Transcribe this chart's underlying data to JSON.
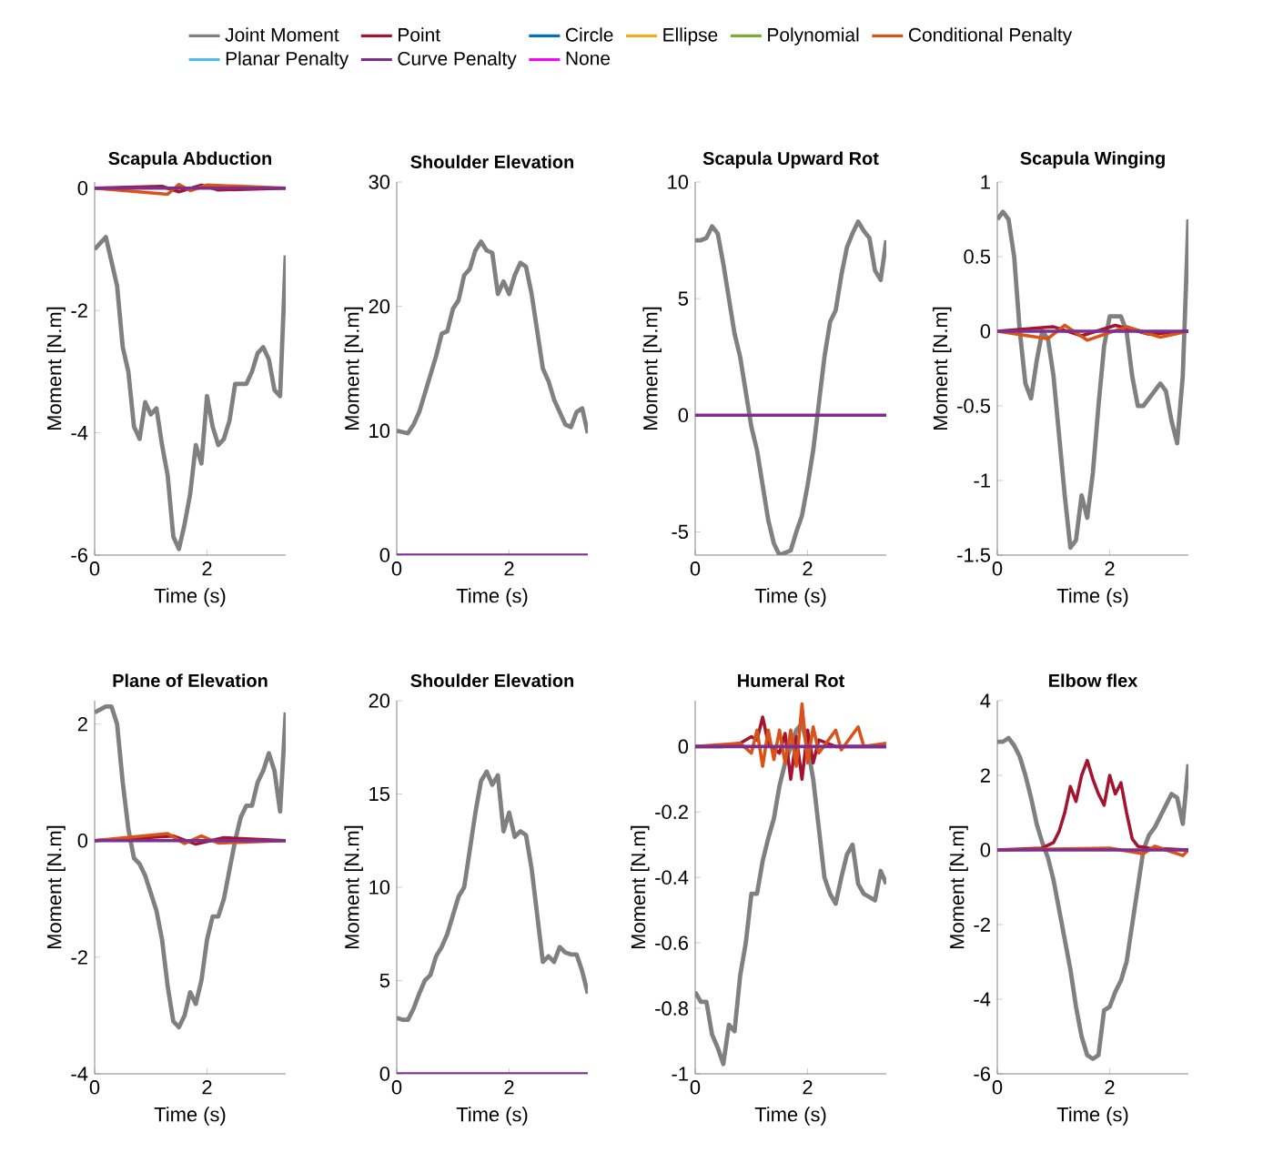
{
  "chart_data": [
    {
      "type": "line",
      "title": "Scapula Abduction",
      "xlabel": "Time (s)",
      "ylabel": "Moment [N.m]",
      "xlim": [
        0,
        3.4
      ],
      "xticks": [
        0,
        2
      ],
      "ylim": [
        -6,
        0.1
      ],
      "yticks": [
        -6,
        -4,
        -2,
        0
      ],
      "legend": "top",
      "x": [
        0,
        0.1,
        0.2,
        0.3,
        0.4,
        0.5,
        0.6,
        0.7,
        0.8,
        0.9,
        1.0,
        1.1,
        1.2,
        1.3,
        1.4,
        1.5,
        1.6,
        1.7,
        1.8,
        1.9,
        2.0,
        2.1,
        2.2,
        2.3,
        2.4,
        2.5,
        2.6,
        2.7,
        2.8,
        2.9,
        3.0,
        3.1,
        3.2,
        3.3,
        3.4
      ],
      "series": [
        {
          "name": "Joint Moment",
          "color": "#808080",
          "values": [
            -1.0,
            -0.9,
            -0.8,
            -1.2,
            -1.6,
            -2.6,
            -3.0,
            -3.9,
            -4.1,
            -3.5,
            -3.7,
            -3.6,
            -4.2,
            -4.7,
            -5.7,
            -5.9,
            -5.5,
            -5.0,
            -4.2,
            -4.5,
            -3.4,
            -3.9,
            -4.2,
            -4.1,
            -3.8,
            -3.2,
            -3.2,
            -3.2,
            -3.0,
            -2.7,
            -2.6,
            -2.8,
            -3.3,
            -3.4,
            -1.1
          ]
        },
        {
          "name": "Point",
          "color": "#a2142f",
          "x": [
            0,
            1.2,
            1.5,
            1.9,
            2.2,
            3.4
          ],
          "values": [
            0,
            0.03,
            -0.06,
            0.05,
            -0.03,
            0
          ]
        },
        {
          "name": "Circle",
          "color": "#0072bd",
          "values": [
            null,
            null,
            null,
            null,
            null,
            null,
            null,
            null,
            null,
            null,
            null,
            null,
            null,
            null,
            null,
            null,
            null,
            null,
            null,
            null,
            null,
            null,
            null,
            null,
            null,
            null,
            null,
            null,
            null,
            null,
            null,
            null,
            null,
            null,
            null
          ]
        },
        {
          "name": "Ellipse",
          "color": "#edb120",
          "values": [
            null,
            null,
            null,
            null,
            null,
            null,
            null,
            null,
            null,
            null,
            null,
            null,
            null,
            null,
            null,
            null,
            null,
            null,
            null,
            null,
            null,
            null,
            null,
            null,
            null,
            null,
            null,
            null,
            null,
            null,
            null,
            null,
            null,
            null,
            null
          ]
        },
        {
          "name": "Polynomial",
          "color": "#77ac30",
          "values": [
            null,
            null,
            null,
            null,
            null,
            null,
            null,
            null,
            null,
            null,
            null,
            null,
            null,
            null,
            null,
            null,
            null,
            null,
            null,
            null,
            null,
            null,
            null,
            null,
            null,
            null,
            null,
            null,
            null,
            null,
            null,
            null,
            null,
            null,
            null
          ]
        },
        {
          "name": "Conditional Penalty",
          "color": "#d95319",
          "x": [
            0,
            1.3,
            1.5,
            1.7,
            2.0,
            3.4
          ],
          "values": [
            0,
            -0.1,
            0.06,
            -0.04,
            0.05,
            0
          ]
        },
        {
          "name": "Planar Penalty",
          "color": "#4dbeee",
          "values": [
            null,
            null,
            null,
            null,
            null,
            null,
            null,
            null,
            null,
            null,
            null,
            null,
            null,
            null,
            null,
            null,
            null,
            null,
            null,
            null,
            null,
            null,
            null,
            null,
            null,
            null,
            null,
            null,
            null,
            null,
            null,
            null,
            null,
            null,
            null
          ]
        },
        {
          "name": "Curve Penalty",
          "color": "#7e2f8e",
          "x": [
            0,
            3.4
          ],
          "values": [
            0,
            0
          ]
        },
        {
          "name": "None",
          "color": "#ff00ff",
          "values": [
            null,
            null,
            null,
            null,
            null,
            null,
            null,
            null,
            null,
            null,
            null,
            null,
            null,
            null,
            null,
            null,
            null,
            null,
            null,
            null,
            null,
            null,
            null,
            null,
            null,
            null,
            null,
            null,
            null,
            null,
            null,
            null,
            null,
            null,
            null
          ]
        }
      ]
    },
    {
      "type": "line",
      "title": "Shoulder Elevation",
      "xlabel": "Time (s)",
      "ylabel": "Moment [N.m]",
      "xlim": [
        0,
        3.4
      ],
      "xticks": [
        0,
        2
      ],
      "ylim": [
        0,
        30
      ],
      "yticks": [
        0,
        10,
        20,
        30
      ],
      "x": [
        0,
        0.1,
        0.2,
        0.3,
        0.4,
        0.5,
        0.6,
        0.7,
        0.8,
        0.9,
        1.0,
        1.1,
        1.2,
        1.3,
        1.4,
        1.5,
        1.6,
        1.7,
        1.8,
        1.9,
        2.0,
        2.1,
        2.2,
        2.3,
        2.4,
        2.5,
        2.6,
        2.7,
        2.8,
        2.9,
        3.0,
        3.1,
        3.2,
        3.3,
        3.4
      ],
      "series": [
        {
          "color": "#808080",
          "values": [
            10.0,
            9.9,
            9.8,
            10.5,
            11.5,
            13,
            14.5,
            16,
            17.8,
            18,
            19.8,
            20.5,
            22.5,
            23,
            24.5,
            25.2,
            24.5,
            24.3,
            21,
            22,
            21,
            22.5,
            23.5,
            23.2,
            21,
            18,
            15,
            14,
            12.5,
            11.5,
            10.5,
            10.3,
            11.5,
            11.8,
            9.8
          ]
        },
        {
          "color": "#7e2f8e",
          "x": [
            0,
            3.4
          ],
          "values": [
            0,
            0
          ]
        }
      ]
    },
    {
      "type": "line",
      "title": "Scapula Upward Rot",
      "xlabel": "Time (s)",
      "ylabel": "Moment [N.m]",
      "xlim": [
        0,
        3.4
      ],
      "xticks": [
        0,
        2
      ],
      "ylim": [
        -6,
        10
      ],
      "yticks": [
        -5,
        0,
        5,
        10
      ],
      "x": [
        0,
        0.1,
        0.2,
        0.3,
        0.4,
        0.5,
        0.6,
        0.7,
        0.8,
        0.9,
        1.0,
        1.1,
        1.2,
        1.3,
        1.4,
        1.5,
        1.6,
        1.7,
        1.8,
        1.9,
        2.0,
        2.1,
        2.2,
        2.3,
        2.4,
        2.5,
        2.6,
        2.7,
        2.8,
        2.9,
        3.0,
        3.1,
        3.2,
        3.3,
        3.4
      ],
      "series": [
        {
          "color": "#808080",
          "values": [
            7.5,
            7.5,
            7.6,
            8.1,
            7.8,
            6.5,
            5.0,
            3.5,
            2.5,
            1.0,
            -0.5,
            -1.5,
            -3,
            -4.5,
            -5.5,
            -6.0,
            -5.9,
            -5.8,
            -5.0,
            -4.3,
            -3.0,
            -1.5,
            0.5,
            2.5,
            4.0,
            4.5,
            6.0,
            7.2,
            7.8,
            8.3,
            7.9,
            7.6,
            6.2,
            5.8,
            7.5
          ]
        },
        {
          "color": "#7e2f8e",
          "x": [
            0,
            3.4
          ],
          "values": [
            0,
            0
          ]
        }
      ]
    },
    {
      "type": "line",
      "title": "Scapula Winging",
      "xlabel": "Time (s)",
      "ylabel": "Moment [N.m]",
      "xlim": [
        0,
        3.4
      ],
      "xticks": [
        0,
        2
      ],
      "ylim": [
        -1.5,
        1
      ],
      "yticks": [
        -1.5,
        -1,
        -0.5,
        0,
        0.5,
        1
      ],
      "x": [
        0,
        0.1,
        0.2,
        0.3,
        0.4,
        0.5,
        0.6,
        0.7,
        0.8,
        0.9,
        1.0,
        1.1,
        1.2,
        1.3,
        1.4,
        1.5,
        1.6,
        1.7,
        1.8,
        1.9,
        2.0,
        2.1,
        2.2,
        2.3,
        2.4,
        2.5,
        2.6,
        2.7,
        2.8,
        2.9,
        3.0,
        3.1,
        3.2,
        3.3,
        3.4
      ],
      "series": [
        {
          "color": "#808080",
          "values": [
            0.75,
            0.8,
            0.75,
            0.5,
            0.0,
            -0.35,
            -0.45,
            -0.2,
            0.0,
            -0.05,
            -0.3,
            -0.7,
            -1.1,
            -1.45,
            -1.4,
            -1.1,
            -1.25,
            -0.95,
            -0.5,
            -0.1,
            0.1,
            0.1,
            0.1,
            0.0,
            -0.3,
            -0.5,
            -0.5,
            -0.45,
            -0.4,
            -0.35,
            -0.4,
            -0.6,
            -0.75,
            -0.3,
            0.75
          ]
        },
        {
          "color": "#a2142f",
          "x": [
            0,
            1.0,
            1.5,
            2.1,
            2.7,
            3.4
          ],
          "values": [
            0,
            0.03,
            -0.03,
            0.04,
            -0.02,
            0
          ]
        },
        {
          "color": "#d95319",
          "x": [
            0,
            0.9,
            1.2,
            1.6,
            2.3,
            2.9,
            3.4
          ],
          "values": [
            0,
            -0.05,
            0.04,
            -0.06,
            0.03,
            -0.04,
            0
          ]
        },
        {
          "color": "#7e2f8e",
          "x": [
            0,
            3.4
          ],
          "values": [
            0,
            0
          ]
        }
      ]
    },
    {
      "type": "line",
      "title": "Plane of Elevation",
      "xlabel": "Time (s)",
      "ylabel": "Moment [N.m]",
      "xlim": [
        0,
        3.4
      ],
      "xticks": [
        0,
        2
      ],
      "ylim": [
        -4,
        2.4
      ],
      "yticks": [
        -4,
        -2,
        0,
        2
      ],
      "x": [
        0,
        0.1,
        0.2,
        0.3,
        0.4,
        0.5,
        0.6,
        0.7,
        0.8,
        0.9,
        1.0,
        1.1,
        1.2,
        1.3,
        1.4,
        1.5,
        1.6,
        1.7,
        1.8,
        1.9,
        2.0,
        2.1,
        2.2,
        2.3,
        2.4,
        2.5,
        2.6,
        2.7,
        2.8,
        2.9,
        3.0,
        3.1,
        3.2,
        3.3,
        3.4
      ],
      "series": [
        {
          "color": "#808080",
          "values": [
            2.2,
            2.25,
            2.3,
            2.3,
            2.0,
            1.0,
            0.2,
            -0.3,
            -0.4,
            -0.6,
            -0.9,
            -1.2,
            -1.7,
            -2.5,
            -3.1,
            -3.2,
            -3.0,
            -2.6,
            -2.8,
            -2.4,
            -1.7,
            -1.3,
            -1.3,
            -1.0,
            -0.5,
            0.0,
            0.4,
            0.6,
            0.6,
            1.0,
            1.2,
            1.5,
            1.2,
            0.5,
            2.2
          ]
        },
        {
          "color": "#a2142f",
          "x": [
            0,
            1.4,
            1.8,
            2.3,
            3.4
          ],
          "values": [
            0,
            0.08,
            -0.06,
            0.05,
            0
          ]
        },
        {
          "color": "#d95319",
          "x": [
            0,
            1.3,
            1.6,
            1.9,
            2.2,
            3.4
          ],
          "values": [
            0,
            0.12,
            -0.05,
            0.08,
            -0.04,
            0
          ]
        },
        {
          "color": "#7e2f8e",
          "x": [
            0,
            3.4
          ],
          "values": [
            0,
            0
          ]
        }
      ]
    },
    {
      "type": "line",
      "title": "Shoulder Elevation",
      "xlabel": "Time (s)",
      "ylabel": "Moment [N.m]",
      "xlim": [
        0,
        3.4
      ],
      "xticks": [
        0,
        2
      ],
      "ylim": [
        0,
        20
      ],
      "yticks": [
        0,
        5,
        10,
        15,
        20
      ],
      "x": [
        0,
        0.1,
        0.2,
        0.3,
        0.4,
        0.5,
        0.6,
        0.7,
        0.8,
        0.9,
        1.0,
        1.1,
        1.2,
        1.3,
        1.4,
        1.5,
        1.6,
        1.7,
        1.8,
        1.9,
        2.0,
        2.1,
        2.2,
        2.3,
        2.4,
        2.5,
        2.6,
        2.7,
        2.8,
        2.9,
        3.0,
        3.1,
        3.2,
        3.3,
        3.4
      ],
      "series": [
        {
          "color": "#808080",
          "values": [
            3.0,
            2.9,
            2.9,
            3.5,
            4.3,
            5.0,
            5.3,
            6.3,
            6.8,
            7.5,
            8.5,
            9.5,
            10.0,
            12,
            14,
            15.7,
            16.2,
            15.5,
            16.0,
            13,
            14,
            12.7,
            13.0,
            12.8,
            11.0,
            8.5,
            6.0,
            6.3,
            6.0,
            6.8,
            6.5,
            6.4,
            6.4,
            5.5,
            4.3
          ]
        },
        {
          "color": "#7e2f8e",
          "x": [
            0,
            3.4
          ],
          "values": [
            0,
            0
          ]
        }
      ]
    },
    {
      "type": "line",
      "title": "Humeral Rot",
      "xlabel": "Time (s)",
      "ylabel": "Moment [N.m]",
      "xlim": [
        0,
        3.4
      ],
      "xticks": [
        0,
        2
      ],
      "ylim": [
        -1,
        0.14
      ],
      "yticks": [
        -1,
        -0.8,
        -0.6,
        -0.4,
        -0.2,
        0
      ],
      "x": [
        0,
        0.1,
        0.2,
        0.3,
        0.4,
        0.5,
        0.6,
        0.7,
        0.8,
        0.9,
        1.0,
        1.1,
        1.2,
        1.3,
        1.4,
        1.5,
        1.6,
        1.7,
        1.8,
        1.9,
        2.0,
        2.1,
        2.2,
        2.3,
        2.4,
        2.5,
        2.6,
        2.7,
        2.8,
        2.9,
        3.0,
        3.1,
        3.2,
        3.3,
        3.4
      ],
      "series": [
        {
          "color": "#808080",
          "values": [
            -0.75,
            -0.78,
            -0.78,
            -0.88,
            -0.92,
            -0.97,
            -0.85,
            -0.87,
            -0.7,
            -0.6,
            -0.45,
            -0.45,
            -0.35,
            -0.28,
            -0.22,
            -0.12,
            -0.05,
            0.0,
            0.05,
            0.07,
            0.0,
            -0.1,
            -0.25,
            -0.4,
            -0.45,
            -0.48,
            -0.4,
            -0.33,
            -0.3,
            -0.42,
            -0.45,
            -0.46,
            -0.47,
            -0.38,
            -0.42
          ]
        },
        {
          "color": "#a2142f",
          "x": [
            0,
            0.5,
            0.8,
            1.0,
            1.1,
            1.2,
            1.3,
            1.5,
            1.6,
            1.7,
            1.8,
            1.9,
            2.0,
            2.1,
            2.2,
            2.5,
            3.4
          ],
          "values": [
            0,
            0,
            0.01,
            0.03,
            0.02,
            0.09,
            0.01,
            -0.02,
            0.04,
            -0.1,
            0.03,
            -0.1,
            0.05,
            -0.05,
            0.02,
            0.0,
            0.0
          ]
        },
        {
          "color": "#d95319",
          "x": [
            0,
            0.8,
            1.0,
            1.1,
            1.2,
            1.3,
            1.4,
            1.5,
            1.6,
            1.7,
            1.8,
            1.9,
            2.0,
            2.1,
            2.2,
            2.5,
            2.6,
            2.9,
            3.0,
            3.4
          ],
          "values": [
            0,
            0.01,
            -0.02,
            0.05,
            -0.06,
            0.05,
            -0.04,
            0.05,
            -0.05,
            0.05,
            -0.06,
            0.13,
            -0.05,
            0.06,
            -0.02,
            0.05,
            -0.01,
            0.06,
            0.0,
            0.01
          ]
        },
        {
          "color": "#7e2f8e",
          "x": [
            0,
            3.4
          ],
          "values": [
            0,
            0
          ]
        }
      ]
    },
    {
      "type": "line",
      "title": "Elbow flex",
      "xlabel": "Time (s)",
      "ylabel": "Moment [N.m]",
      "xlim": [
        0,
        3.4
      ],
      "xticks": [
        0,
        2
      ],
      "ylim": [
        -6,
        4
      ],
      "yticks": [
        -6,
        -4,
        -2,
        0,
        2,
        4
      ],
      "x": [
        0,
        0.1,
        0.2,
        0.3,
        0.4,
        0.5,
        0.6,
        0.7,
        0.8,
        0.9,
        1.0,
        1.1,
        1.2,
        1.3,
        1.4,
        1.5,
        1.6,
        1.7,
        1.8,
        1.9,
        2.0,
        2.1,
        2.2,
        2.3,
        2.4,
        2.5,
        2.6,
        2.7,
        2.8,
        2.9,
        3.0,
        3.1,
        3.2,
        3.3,
        3.4
      ],
      "series": [
        {
          "color": "#808080",
          "values": [
            2.9,
            2.9,
            3.0,
            2.8,
            2.5,
            2.0,
            1.4,
            0.7,
            0.2,
            -0.2,
            -0.8,
            -1.6,
            -2.4,
            -3.2,
            -4.2,
            -5.0,
            -5.5,
            -5.6,
            -5.5,
            -4.3,
            -4.2,
            -3.8,
            -3.5,
            -3.0,
            -2.0,
            -1.0,
            0.0,
            0.4,
            0.6,
            0.9,
            1.2,
            1.5,
            1.4,
            0.7,
            2.3
          ]
        },
        {
          "color": "#a2142f",
          "x": [
            0,
            0.8,
            1.0,
            1.1,
            1.2,
            1.3,
            1.4,
            1.5,
            1.6,
            1.7,
            1.8,
            1.9,
            2.0,
            2.1,
            2.2,
            2.3,
            2.4,
            2.5,
            2.7,
            3.4
          ],
          "values": [
            0,
            0.05,
            0.2,
            0.5,
            1.0,
            1.7,
            1.3,
            2.0,
            2.4,
            1.9,
            1.5,
            1.2,
            2.0,
            1.5,
            1.8,
            1.0,
            0.3,
            0.1,
            0.05,
            0.0
          ]
        },
        {
          "color": "#d95319",
          "x": [
            0,
            2.0,
            2.6,
            2.8,
            3.3,
            3.4
          ],
          "values": [
            0,
            0.05,
            -0.1,
            0.1,
            -0.15,
            0.0
          ]
        },
        {
          "color": "#7e2f8e",
          "x": [
            0,
            3.4
          ],
          "values": [
            0,
            0
          ]
        }
      ]
    }
  ]
}
